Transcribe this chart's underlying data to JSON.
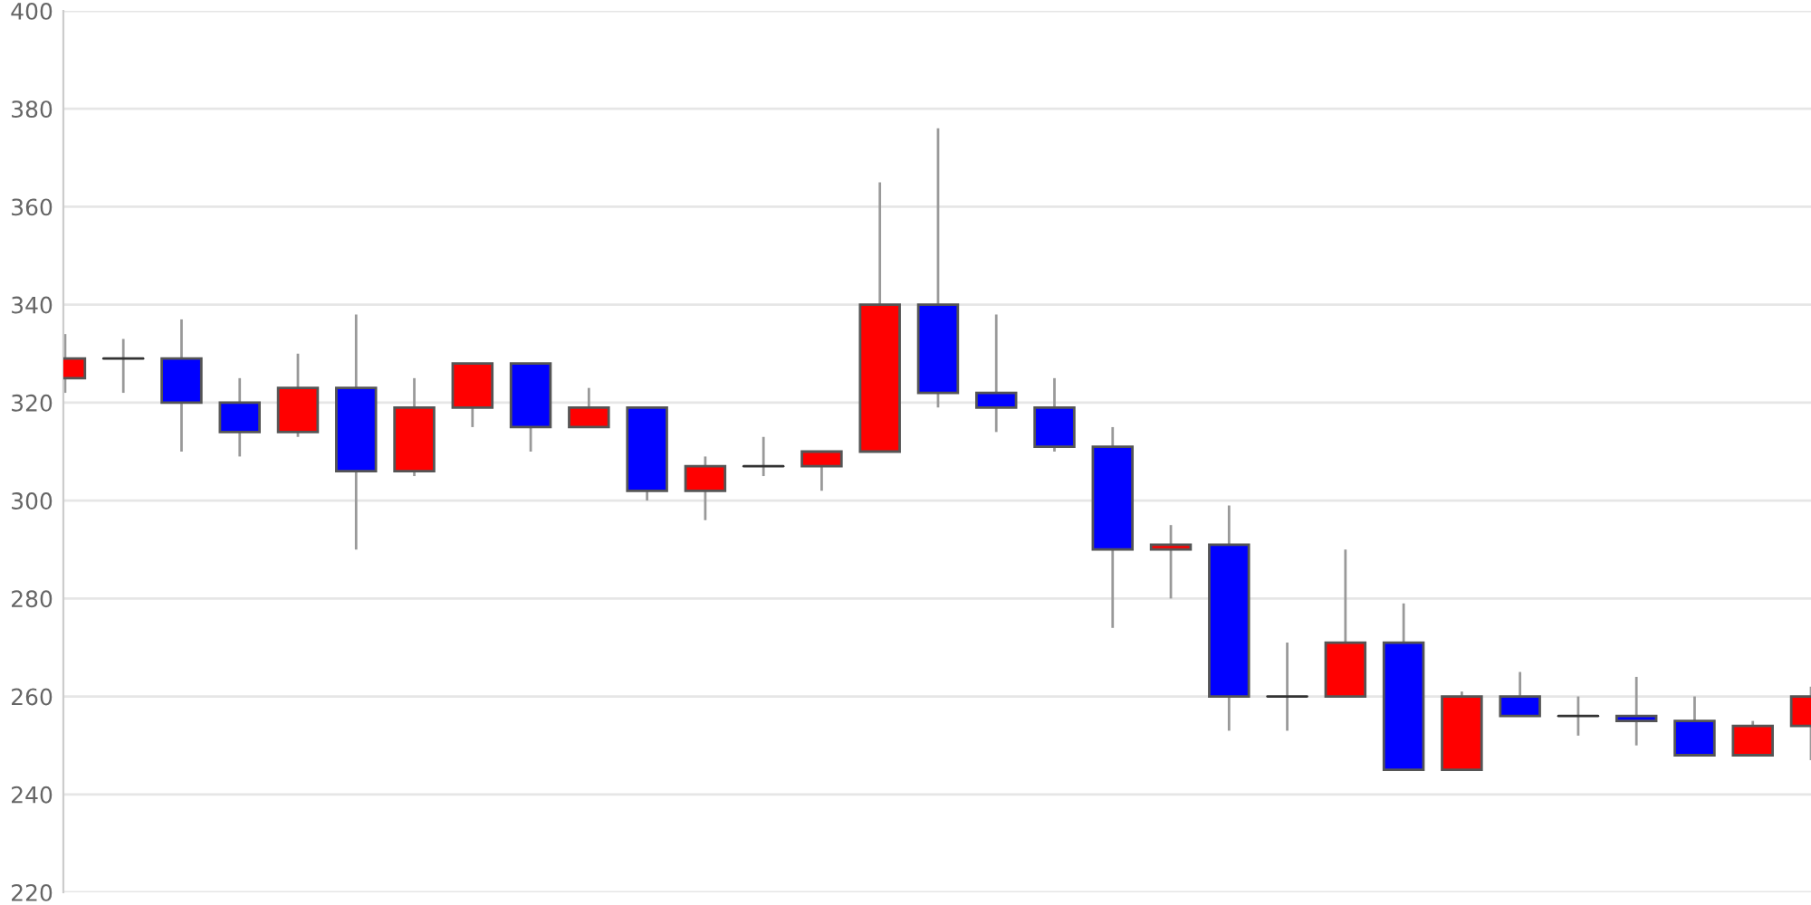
{
  "chart_data": {
    "type": "candlestick",
    "categories": [
      null,
      null,
      null,
      null,
      null,
      null,
      null,
      null,
      null,
      null,
      null,
      null,
      null,
      null,
      null,
      null,
      null,
      null,
      null,
      null,
      null,
      null,
      null,
      null,
      null,
      null,
      null,
      null,
      null,
      null,
      null
    ],
    "ohlc": [
      [
        325,
        334,
        322,
        329
      ],
      [
        329,
        333,
        322,
        329
      ],
      [
        329,
        337,
        310,
        320
      ],
      [
        320,
        325,
        309,
        314
      ],
      [
        314,
        330,
        313,
        323
      ],
      [
        323,
        338,
        290,
        306
      ],
      [
        306,
        325,
        305,
        319
      ],
      [
        319,
        328,
        315,
        328
      ],
      [
        328,
        328,
        310,
        315
      ],
      [
        315,
        323,
        315,
        319
      ],
      [
        319,
        319,
        300,
        302
      ],
      [
        302,
        309,
        296,
        307
      ],
      [
        307,
        313,
        305,
        307
      ],
      [
        307,
        310,
        302,
        310
      ],
      [
        310,
        365,
        310,
        340
      ],
      [
        340,
        376,
        319,
        322
      ],
      [
        322,
        338,
        314,
        319
      ],
      [
        319,
        325,
        310,
        311
      ],
      [
        311,
        315,
        274,
        290
      ],
      [
        290,
        295,
        280,
        291
      ],
      [
        291,
        299,
        253,
        260
      ],
      [
        260,
        271,
        253,
        260
      ],
      [
        260,
        290,
        260,
        271
      ],
      [
        271,
        279,
        245,
        245
      ],
      [
        245,
        261,
        245,
        260
      ],
      [
        260,
        265,
        256,
        256
      ],
      [
        256,
        260,
        252,
        256
      ],
      [
        256,
        264,
        250,
        255
      ],
      [
        255,
        260,
        248,
        248
      ],
      [
        248,
        255,
        248,
        254
      ],
      [
        254,
        262,
        247,
        260
      ]
    ],
    "colors": [
      "#ff0000",
      "#333333",
      "#0000ff",
      "#0000ff",
      "#ff0000",
      "#0000ff",
      "#ff0000",
      "#ff0000",
      "#0000ff",
      "#ff0000",
      "#0000ff",
      "#ff0000",
      "#333333",
      "#ff0000",
      "#ff0000",
      "#0000ff",
      "#0000ff",
      "#0000ff",
      "#0000ff",
      "#ff0000",
      "#0000ff",
      "#333333",
      "#ff0000",
      "#0000ff",
      "#ff0000",
      "#0000ff",
      "#333333",
      "#0000ff",
      "#0000ff",
      "#ff0000",
      "#ff0000"
    ],
    "ylim": [
      220,
      400
    ],
    "yticks": [
      220,
      240,
      260,
      280,
      300,
      320,
      340,
      360,
      380,
      400
    ],
    "grid": "y",
    "tick_labels": "y"
  }
}
